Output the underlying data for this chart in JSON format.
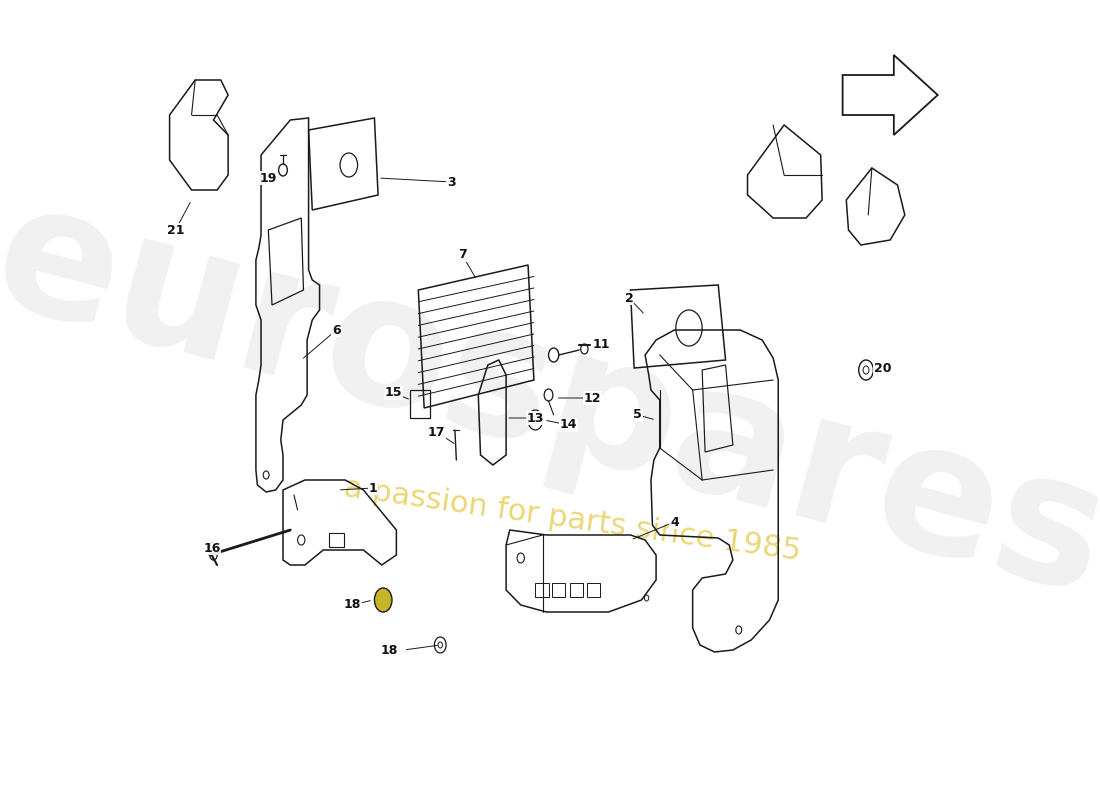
{
  "background_color": "#ffffff",
  "line_color": "#1a1a1a",
  "watermark1": "eurospares",
  "watermark2": "a passion for parts since 1985",
  "wm_color1": "#e0e0e0",
  "wm_color2": "#e8d060",
  "figsize": [
    11.0,
    8.0
  ],
  "dpi": 100,
  "label_fontsize": 9
}
